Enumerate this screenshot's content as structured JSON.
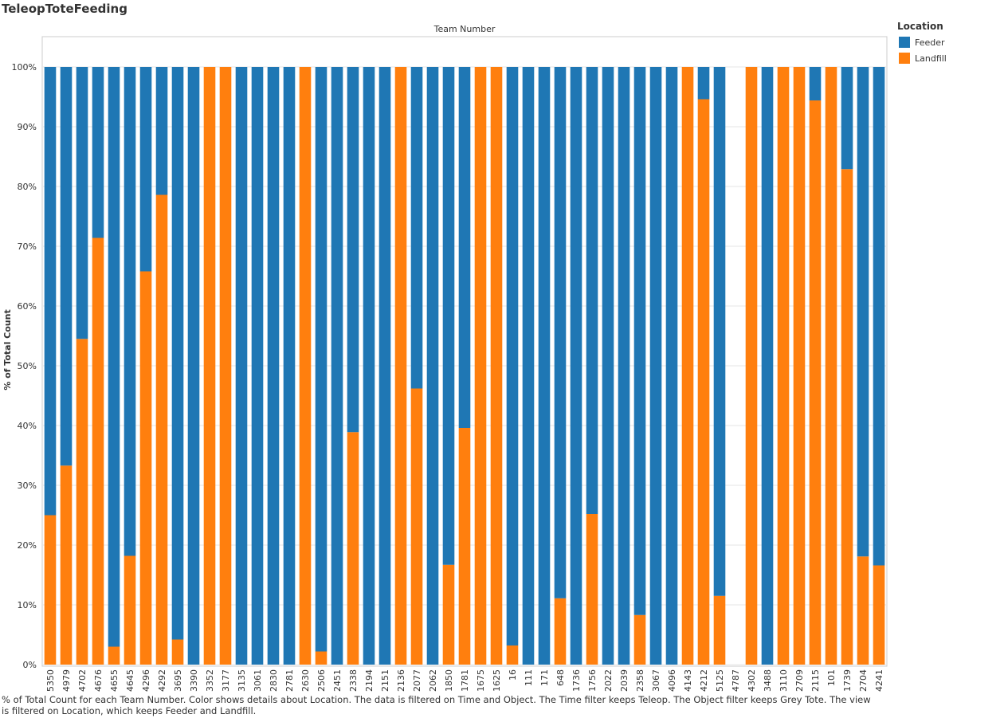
{
  "title": "TeleopToteFeeding",
  "caption": "% of Total Count for each Team Number.  Color shows details about Location. The data is filtered on Time and Object. The Time filter keeps Teleop. The Object filter keeps Grey Tote. The view is filtered on Location, which keeps Feeder and Landfill.",
  "colors": {
    "feeder": "#1f77b4",
    "landfill": "#ff7f0e",
    "grid": "#e6e6e6",
    "axis": "#cccccc"
  },
  "legend": {
    "title": "Location",
    "items": [
      {
        "label": "Feeder",
        "color": "#1f77b4"
      },
      {
        "label": "Landfill",
        "color": "#ff7f0e"
      }
    ]
  },
  "chart_data": {
    "type": "bar",
    "stacked": true,
    "title": "TeleopToteFeeding",
    "xlabel": "Team Number",
    "ylabel": "% of Total Count",
    "ylim": [
      0,
      100
    ],
    "yticks": [
      "0%",
      "10%",
      "20%",
      "30%",
      "40%",
      "50%",
      "60%",
      "70%",
      "80%",
      "90%",
      "100%"
    ],
    "grid": true,
    "legend_position": "right",
    "categories": [
      "5350",
      "4979",
      "4702",
      "4676",
      "4655",
      "4645",
      "4296",
      "4292",
      "3695",
      "3390",
      "3352",
      "3177",
      "3135",
      "3061",
      "2830",
      "2781",
      "2630",
      "2506",
      "2451",
      "2338",
      "2194",
      "2151",
      "2136",
      "2077",
      "2062",
      "1850",
      "1781",
      "1675",
      "1625",
      "16",
      "111",
      "171",
      "648",
      "1736",
      "1756",
      "2022",
      "2039",
      "2358",
      "3067",
      "4096",
      "4143",
      "4212",
      "5125",
      "4787",
      "4302",
      "3488",
      "3110",
      "2709",
      "2115",
      "101",
      "1739",
      "2704",
      "4241"
    ],
    "series": [
      {
        "name": "Landfill",
        "values": [
          25,
          33.3,
          54.5,
          71.4,
          3,
          18.2,
          65.8,
          78.6,
          4.2,
          0,
          100,
          100,
          0,
          0,
          0,
          0,
          100,
          2.2,
          0,
          38.9,
          0,
          0,
          100,
          46.2,
          0,
          16.7,
          39.6,
          100,
          100,
          3.2,
          0,
          0,
          11.1,
          0,
          25.2,
          0,
          0,
          8.3,
          0,
          0,
          100,
          94.6,
          11.5,
          0,
          100,
          0,
          100,
          100,
          94.4,
          100,
          82.9,
          18.1,
          16.6
        ]
      },
      {
        "name": "Feeder",
        "values": [
          75,
          66.7,
          45.5,
          28.6,
          97,
          81.8,
          34.2,
          21.4,
          95.8,
          100,
          0,
          0,
          100,
          100,
          100,
          100,
          0,
          97.8,
          100,
          61.1,
          100,
          100,
          0,
          53.8,
          100,
          83.3,
          60.4,
          0,
          0,
          96.8,
          100,
          100,
          88.9,
          100,
          74.8,
          100,
          100,
          91.7,
          100,
          100,
          0,
          5.4,
          88.5,
          0,
          0,
          100,
          0,
          0,
          5.6,
          0,
          17.1,
          81.9,
          83.4
        ]
      }
    ]
  }
}
